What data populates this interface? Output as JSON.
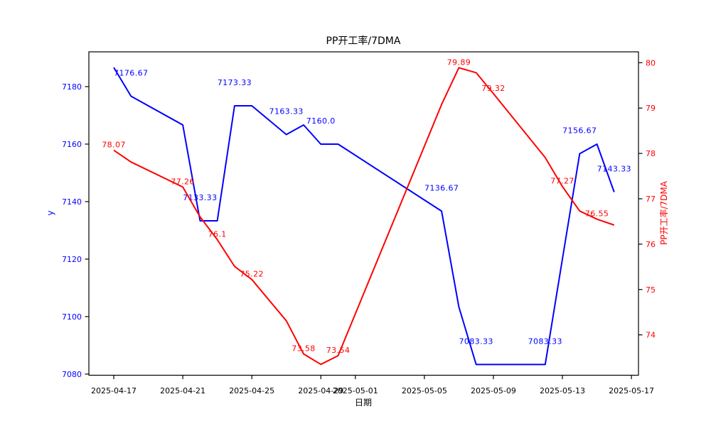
{
  "title": "PP开工率/7DMA",
  "xlabel": "日期",
  "ylabel_left": "y",
  "ylabel_right": "PP开工率/7DMA",
  "colors": {
    "y_series": "#0000ff",
    "dma_series": "#ff0000",
    "axis": "#000000",
    "background": "#ffffff"
  },
  "axes": {
    "x_ticks": [
      {
        "label": "2025-04-17",
        "day": 0
      },
      {
        "label": "2025-04-21",
        "day": 4
      },
      {
        "label": "2025-04-25",
        "day": 8
      },
      {
        "label": "2025-04-29",
        "day": 12
      },
      {
        "label": "2025-05-01",
        "day": 14
      },
      {
        "label": "2025-05-05",
        "day": 18
      },
      {
        "label": "2025-05-09",
        "day": 22
      },
      {
        "label": "2025-05-13",
        "day": 26
      },
      {
        "label": "2025-05-17",
        "day": 30
      }
    ],
    "left_ticks": [
      {
        "label": "7180",
        "value": 7180
      },
      {
        "label": "7160",
        "value": 7160
      },
      {
        "label": "7140",
        "value": 7140
      },
      {
        "label": "7120",
        "value": 7120
      },
      {
        "label": "7100",
        "value": 7100
      },
      {
        "label": "7080",
        "value": 7080
      }
    ],
    "right_ticks": [
      {
        "label": "80",
        "value": 80
      },
      {
        "label": "79",
        "value": 79
      },
      {
        "label": "78",
        "value": 78
      },
      {
        "label": "77",
        "value": 77
      },
      {
        "label": "76",
        "value": 76
      },
      {
        "label": "75",
        "value": 75
      },
      {
        "label": "74",
        "value": 74
      }
    ]
  },
  "chart_data": {
    "type": "line",
    "title": "PP开工率/7DMA",
    "xlabel": "日期",
    "ylabel_left": "y",
    "ylabel_right": "PP开工率/7DMA",
    "grid": false,
    "legend": null,
    "x": [
      "2025-04-17",
      "2025-04-18",
      "2025-04-21",
      "2025-04-22",
      "2025-04-23",
      "2025-04-24",
      "2025-04-25",
      "2025-04-27",
      "2025-04-28",
      "2025-04-29",
      "2025-04-30",
      "2025-05-06",
      "2025-05-07",
      "2025-05-08",
      "2025-05-09",
      "2025-05-12",
      "2025-05-13",
      "2025-05-14",
      "2025-05-15",
      "2025-05-16"
    ],
    "day_offsets": [
      0,
      1,
      4,
      5,
      6,
      7,
      8,
      10,
      11,
      12,
      13,
      19,
      20,
      21,
      22,
      25,
      26,
      27,
      28,
      29
    ],
    "ylim_left": [
      7079.6,
      7192.1
    ],
    "ylim_right": [
      73.11,
      80.24
    ],
    "series": [
      {
        "name": "y",
        "axis": "left",
        "color": "#0000ff",
        "values": [
          7186.67,
          7176.67,
          7166.67,
          7133.33,
          7133.33,
          7173.33,
          7173.33,
          7163.33,
          7166.67,
          7160.0,
          7160.0,
          7136.67,
          7103.33,
          7083.33,
          7083.33,
          7083.33,
          7120.0,
          7156.67,
          7160.0,
          7143.33
        ],
        "annotations": [
          {
            "index": 1,
            "label": "7176.67"
          },
          {
            "index": 3,
            "label": "7133.33"
          },
          {
            "index": 5,
            "label": "7173.33"
          },
          {
            "index": 7,
            "label": "7163.33"
          },
          {
            "index": 9,
            "label": "7160.0"
          },
          {
            "index": 11,
            "label": "7136.67"
          },
          {
            "index": 13,
            "label": "7083.33"
          },
          {
            "index": 15,
            "label": "7083.33"
          },
          {
            "index": 17,
            "label": "7156.67"
          },
          {
            "index": 19,
            "label": "7143.33"
          }
        ]
      },
      {
        "name": "PP开工率/7DMA",
        "axis": "right",
        "color": "#ff0000",
        "values": [
          78.07,
          77.81,
          77.26,
          76.6,
          76.1,
          75.51,
          75.22,
          74.31,
          73.58,
          73.35,
          73.54,
          79.08,
          79.89,
          79.78,
          79.32,
          77.91,
          77.27,
          76.73,
          76.55,
          76.42
        ],
        "annotations": [
          {
            "index": 0,
            "label": "78.07"
          },
          {
            "index": 2,
            "label": "77.26"
          },
          {
            "index": 4,
            "label": "76.1"
          },
          {
            "index": 6,
            "label": "75.22"
          },
          {
            "index": 8,
            "label": "73.58"
          },
          {
            "index": 10,
            "label": "73.54"
          },
          {
            "index": 12,
            "label": "79.89"
          },
          {
            "index": 14,
            "label": "79.32"
          },
          {
            "index": 16,
            "label": "77.27"
          },
          {
            "index": 18,
            "label": "76.55"
          }
        ]
      }
    ]
  }
}
